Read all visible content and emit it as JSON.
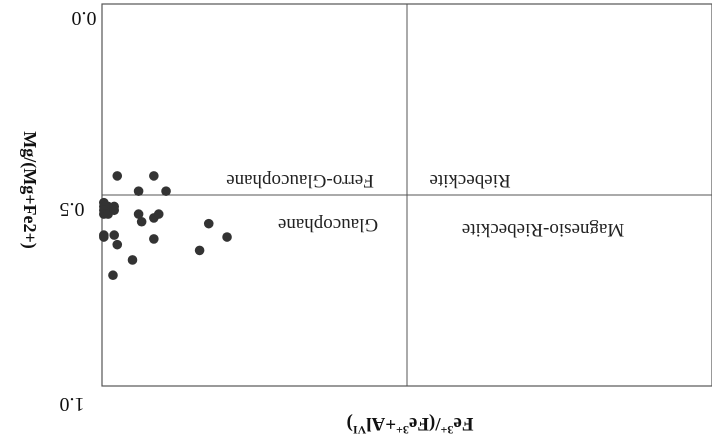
{
  "chart_data": {
    "type": "scatter",
    "xlabel_main": "Fe",
    "xlabel_sup1": "3+",
    "xlabel_mid": "/(Fe",
    "xlabel_sup2": "3+",
    "xlabel_mid2": "+Al",
    "xlabel_sup3": "VI",
    "xlabel_end": ")",
    "ylabel": "Mg/(Mg+Fe2+)",
    "ytick_labels": [
      "0.0",
      "0.5",
      "1.0"
    ],
    "yticks": [
      0.0,
      0.5,
      1.0
    ],
    "xlim": [
      0,
      1
    ],
    "ylim": [
      0,
      1
    ],
    "y_axis_inverted": true,
    "divider_x": 0.5,
    "divider_y": 0.5,
    "field_labels": {
      "upper_left": "Ferro-Glaucophane",
      "upper_right": "Riebeckite",
      "lower_left": "Glaucophane",
      "lower_right": "Magnesio-Riebeckite"
    },
    "points": [
      {
        "x": 0.025,
        "y": 0.45
      },
      {
        "x": 0.085,
        "y": 0.45
      },
      {
        "x": 0.105,
        "y": 0.49
      },
      {
        "x": 0.06,
        "y": 0.49
      },
      {
        "x": 0.003,
        "y": 0.53
      },
      {
        "x": 0.003,
        "y": 0.52
      },
      {
        "x": 0.005,
        "y": 0.53
      },
      {
        "x": 0.01,
        "y": 0.53
      },
      {
        "x": 0.003,
        "y": 0.54
      },
      {
        "x": 0.003,
        "y": 0.55
      },
      {
        "x": 0.01,
        "y": 0.55
      },
      {
        "x": 0.02,
        "y": 0.53
      },
      {
        "x": 0.02,
        "y": 0.54
      },
      {
        "x": 0.06,
        "y": 0.55
      },
      {
        "x": 0.085,
        "y": 0.56
      },
      {
        "x": 0.093,
        "y": 0.55
      },
      {
        "x": 0.065,
        "y": 0.57
      },
      {
        "x": 0.175,
        "y": 0.575
      },
      {
        "x": 0.003,
        "y": 0.605
      },
      {
        "x": 0.003,
        "y": 0.61
      },
      {
        "x": 0.02,
        "y": 0.605
      },
      {
        "x": 0.085,
        "y": 0.615
      },
      {
        "x": 0.205,
        "y": 0.61
      },
      {
        "x": 0.025,
        "y": 0.63
      },
      {
        "x": 0.16,
        "y": 0.645
      },
      {
        "x": 0.05,
        "y": 0.67
      },
      {
        "x": 0.018,
        "y": 0.71
      }
    ]
  }
}
